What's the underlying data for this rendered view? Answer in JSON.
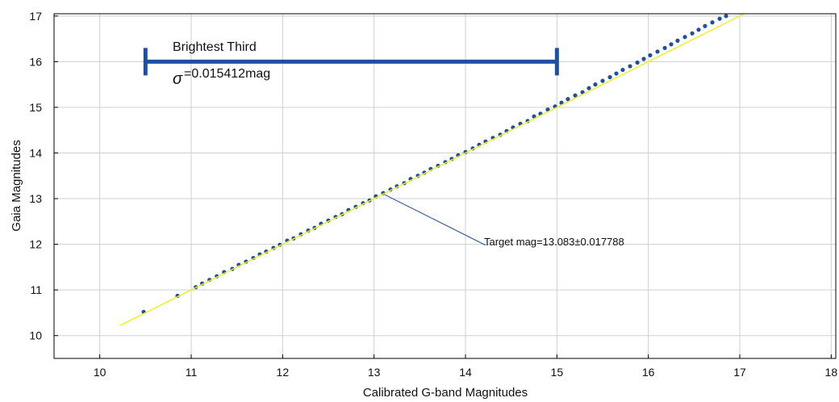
{
  "chart_data": {
    "type": "scatter",
    "title": "",
    "xlabel": "Calibrated G-band Magnitudes",
    "ylabel": "Gaia Magnitudes",
    "xlim": [
      9.5,
      18.05
    ],
    "ylim": [
      9.5,
      17.05
    ],
    "xticks": [
      10,
      11,
      12,
      13,
      14,
      15,
      16,
      17,
      18
    ],
    "yticks": [
      10,
      11,
      12,
      13,
      14,
      15,
      16,
      17
    ],
    "grid": true,
    "fit_line": {
      "x": [
        10.22,
        17.05
      ],
      "y": [
        10.22,
        17.05
      ],
      "color": "#f0f020"
    },
    "marker_color": "#1f4f9e",
    "range_bar": {
      "x_start": 10.5,
      "x_end": 15.0,
      "y": 16.0,
      "color": "#1f4f9e"
    },
    "annotations": {
      "bracket_title": "Brightest Third",
      "sigma_symbol": "σ",
      "sigma_text": "=0.015412mag",
      "target_text": "Target mag=13.083±0.017788"
    },
    "target_point": {
      "x": 13.12,
      "y": 13.083
    },
    "target_label_anchor": {
      "x": 14.22,
      "y": 11.98
    },
    "series": [
      {
        "points": [
          [
            10.48,
            10.52
          ],
          [
            10.85,
            10.87
          ],
          [
            11.05,
            11.06
          ],
          [
            11.12,
            11.14
          ],
          [
            11.2,
            11.22
          ],
          [
            11.28,
            11.3
          ],
          [
            11.36,
            11.39
          ],
          [
            11.45,
            11.46
          ],
          [
            11.52,
            11.55
          ],
          [
            11.6,
            11.62
          ],
          [
            11.68,
            11.7
          ],
          [
            11.75,
            11.78
          ],
          [
            11.82,
            11.84
          ],
          [
            11.9,
            11.92
          ],
          [
            11.97,
            11.99
          ],
          [
            12.05,
            12.08
          ],
          [
            12.12,
            12.13
          ],
          [
            12.2,
            12.22
          ],
          [
            12.28,
            12.3
          ],
          [
            12.35,
            12.36
          ],
          [
            12.42,
            12.45
          ],
          [
            12.5,
            12.52
          ],
          [
            12.58,
            12.6
          ],
          [
            12.65,
            12.66
          ],
          [
            12.72,
            12.75
          ],
          [
            12.8,
            12.82
          ],
          [
            12.88,
            12.9
          ],
          [
            12.95,
            12.96
          ],
          [
            13.02,
            13.05
          ],
          [
            13.1,
            13.12
          ],
          [
            13.18,
            13.2
          ],
          [
            13.25,
            13.27
          ],
          [
            13.33,
            13.34
          ],
          [
            13.4,
            13.43
          ],
          [
            13.48,
            13.5
          ],
          [
            13.55,
            13.57
          ],
          [
            13.62,
            13.65
          ],
          [
            13.7,
            13.72
          ],
          [
            13.78,
            13.8
          ],
          [
            13.85,
            13.87
          ],
          [
            13.92,
            13.95
          ],
          [
            14.0,
            14.02
          ],
          [
            14.08,
            14.1
          ],
          [
            14.15,
            14.18
          ],
          [
            14.22,
            14.25
          ],
          [
            14.3,
            14.33
          ],
          [
            14.38,
            14.4
          ],
          [
            14.45,
            14.48
          ],
          [
            14.52,
            14.56
          ],
          [
            14.6,
            14.64
          ],
          [
            14.68,
            14.7
          ],
          [
            14.75,
            14.8
          ],
          [
            14.82,
            14.86
          ],
          [
            14.9,
            14.95
          ],
          [
            14.98,
            15.02
          ],
          [
            15.05,
            15.1
          ],
          [
            15.12,
            15.18
          ],
          [
            15.2,
            15.26
          ],
          [
            15.28,
            15.33
          ],
          [
            15.35,
            15.42
          ],
          [
            15.42,
            15.5
          ],
          [
            15.5,
            15.58
          ],
          [
            15.58,
            15.66
          ],
          [
            15.65,
            15.74
          ],
          [
            15.72,
            15.82
          ],
          [
            15.8,
            15.9
          ],
          [
            15.88,
            15.98
          ],
          [
            15.95,
            16.06
          ],
          [
            16.02,
            16.14
          ],
          [
            16.1,
            16.22
          ],
          [
            16.18,
            16.3
          ],
          [
            16.25,
            16.38
          ],
          [
            16.32,
            16.46
          ],
          [
            16.4,
            16.54
          ],
          [
            16.48,
            16.62
          ],
          [
            16.55,
            16.7
          ],
          [
            16.62,
            16.78
          ],
          [
            16.7,
            16.86
          ],
          [
            16.78,
            16.94
          ],
          [
            16.85,
            17.0
          ]
        ]
      }
    ]
  }
}
